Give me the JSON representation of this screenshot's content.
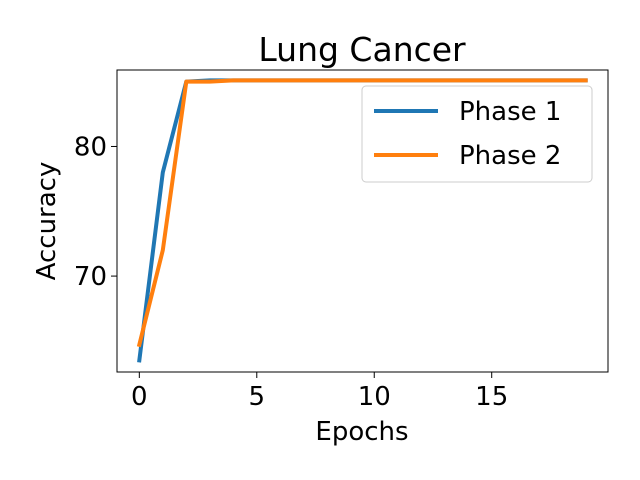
{
  "chart_data": {
    "type": "line",
    "title": "Lung Cancer",
    "xlabel": "Epochs",
    "ylabel": "Accuracy",
    "xlim": [
      -0.95,
      19.95
    ],
    "ylim": [
      62.6,
      85.9
    ],
    "xticks": [
      0,
      5,
      10,
      15
    ],
    "yticks": [
      70,
      80
    ],
    "grid": false,
    "legend_position": "top-right",
    "x": [
      0,
      1,
      2,
      3,
      4,
      5,
      6,
      7,
      8,
      9,
      10,
      11,
      12,
      13,
      14,
      15,
      16,
      17,
      18,
      19
    ],
    "series": [
      {
        "name": "Phase 1",
        "color": "#1f77b4",
        "values": [
          63.5,
          78.0,
          85.0,
          85.1,
          85.1,
          85.1,
          85.1,
          85.1,
          85.1,
          85.1,
          85.1,
          85.1,
          85.1,
          85.1,
          85.1,
          85.1,
          85.1,
          85.1,
          85.1,
          85.1
        ]
      },
      {
        "name": "Phase 2",
        "color": "#ff7f0e",
        "values": [
          64.7,
          72.0,
          85.0,
          85.0,
          85.1,
          85.1,
          85.1,
          85.1,
          85.1,
          85.1,
          85.1,
          85.1,
          85.1,
          85.1,
          85.1,
          85.1,
          85.1,
          85.1,
          85.1,
          85.1
        ]
      }
    ]
  }
}
